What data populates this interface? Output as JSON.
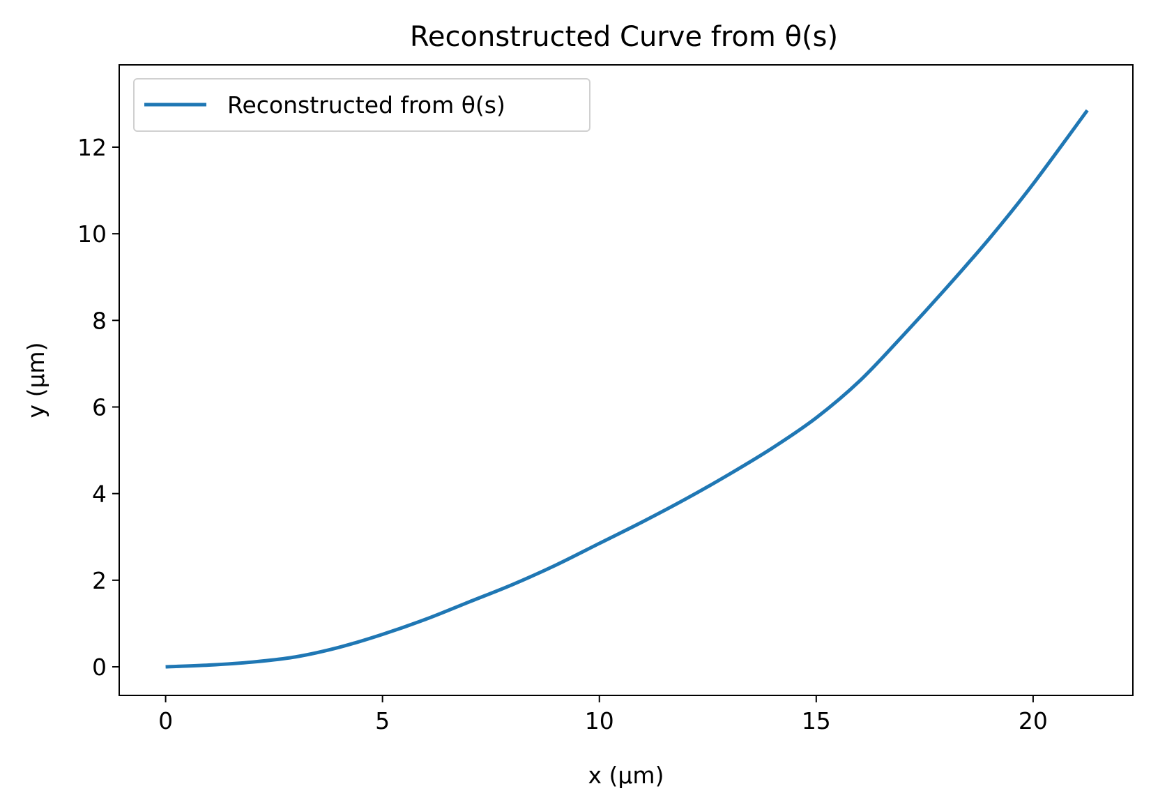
{
  "chart_data": {
    "type": "line",
    "title": "Reconstructed Curve from θ(s)",
    "xlabel": "x (µm)",
    "ylabel": "y (µm)",
    "xlim": [
      -1.07,
      22.3
    ],
    "ylim": [
      -0.66,
      13.9
    ],
    "x_ticks": [
      0,
      5,
      10,
      15,
      20
    ],
    "y_ticks": [
      0,
      2,
      4,
      6,
      8,
      10,
      12
    ],
    "x_tick_labels": [
      "0",
      "5",
      "10",
      "15",
      "20"
    ],
    "y_tick_labels": [
      "0",
      "2",
      "4",
      "6",
      "8",
      "10",
      "12"
    ],
    "grid": false,
    "legend_position": "top-left",
    "series": [
      {
        "name": "Reconstructed from θ(s)",
        "color": "#1f77b4",
        "x": [
          0,
          1,
          2,
          3,
          4,
          5,
          6,
          7,
          8,
          9,
          10,
          11,
          12,
          13,
          14,
          15,
          16,
          17,
          18,
          19,
          20,
          21.25
        ],
        "y": [
          0,
          0.04,
          0.11,
          0.23,
          0.45,
          0.75,
          1.1,
          1.5,
          1.9,
          2.35,
          2.85,
          3.35,
          3.88,
          4.45,
          5.06,
          5.75,
          6.6,
          7.65,
          8.75,
          9.9,
          11.15,
          12.85
        ]
      }
    ]
  }
}
